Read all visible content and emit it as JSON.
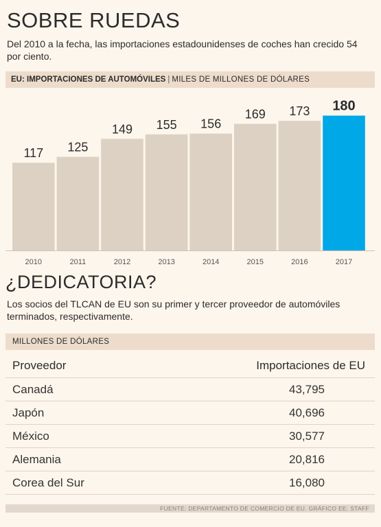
{
  "title": "SOBRE RUEDAS",
  "subtitle": "Del 2010 a la fecha, las importaciones estadounidenses de coches han crecido 54 por ciento.",
  "chart_header": {
    "label_strong": "EU: IMPORTACIONES DE AUTOMÓVILES",
    "separator": "|",
    "label_light": "MILES DE MILLONES DE DÓLARES"
  },
  "colors": {
    "bar": "#ddd1c4",
    "highlight": "#00a8e8",
    "background": "#fdf6ed"
  },
  "chart_data": {
    "type": "bar",
    "categories": [
      "2010",
      "2011",
      "2012",
      "2013",
      "2014",
      "2015",
      "2016",
      "2017"
    ],
    "values": [
      117,
      125,
      149,
      155,
      156,
      169,
      173,
      180
    ],
    "highlight_index": 7,
    "title": "EU: IMPORTACIONES DE AUTOMÓVILES",
    "ylabel": "MILES DE MILLONES DE DÓLARES",
    "ylim": [
      0,
      185
    ],
    "grid": false,
    "data_labels": true
  },
  "section2": {
    "title": "¿DEDICATORIA?",
    "description": "Los socios del TLCAN de EU son su primer y tercer proveedor de automóviles terminados, respectivamente."
  },
  "table": {
    "unit_label": "MILLONES DE DÓLARES",
    "columns": [
      "Proveedor",
      "Importaciones de EU"
    ],
    "rows": [
      [
        "Canadá",
        "43,795"
      ],
      [
        "Japón",
        "40,696"
      ],
      [
        "México",
        "30,577"
      ],
      [
        "Alemania",
        "20,816"
      ],
      [
        "Corea del Sur",
        "16,080"
      ]
    ]
  },
  "footer": "FUENTE: DEPARTAMENTO DE COMERCIO DE EU.  GRÁFICO EE: STAFF"
}
